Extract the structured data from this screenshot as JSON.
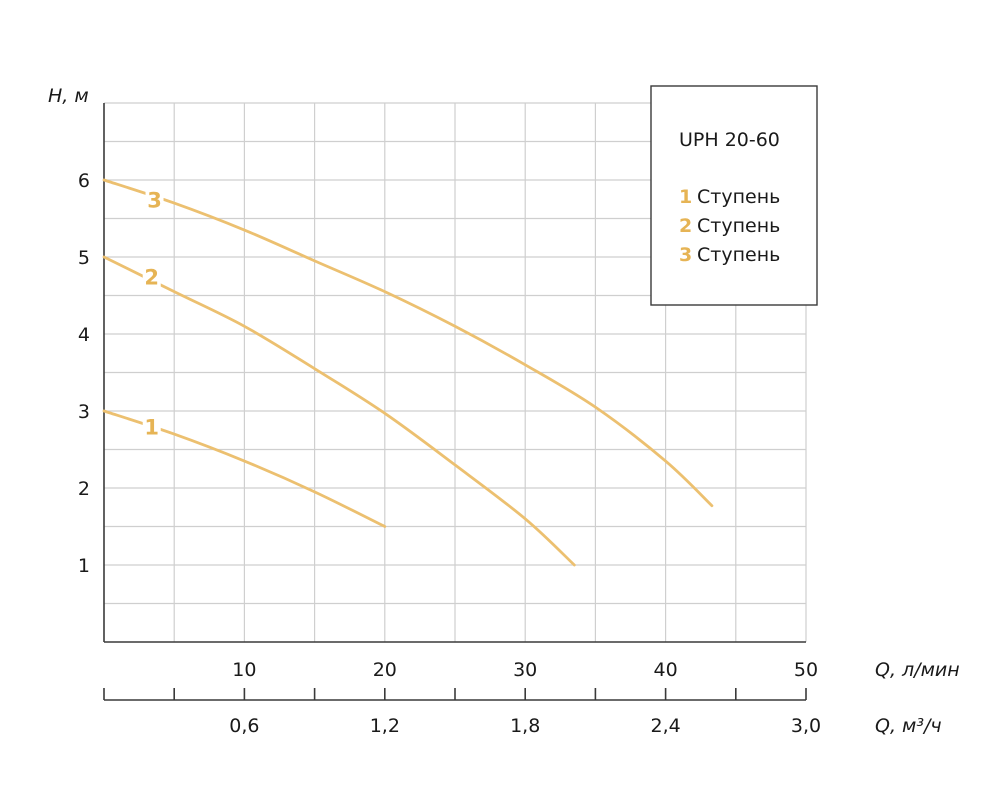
{
  "chart_data": {
    "type": "line",
    "ylabel": "H, м",
    "xlabel": "Q, л/мин",
    "xlabel_secondary": "Q, м³/ч",
    "xlim": [
      0,
      50
    ],
    "ylim": [
      0,
      7
    ],
    "grid": true,
    "x_ticks": [
      10,
      20,
      30,
      40,
      50
    ],
    "x_tick_labels": [
      "10",
      "20",
      "30",
      "40",
      "50"
    ],
    "x_secondary_ticks": [
      0.6,
      1.2,
      1.8,
      2.4,
      3.0
    ],
    "x_secondary_tick_labels": [
      "0,6",
      "1,2",
      "1,8",
      "2,4",
      "3,0"
    ],
    "y_ticks": [
      1,
      2,
      3,
      4,
      5,
      6
    ],
    "y_tick_labels": [
      "1",
      "2",
      "3",
      "4",
      "5",
      "6"
    ],
    "legend": {
      "position": "top-right",
      "title": "UPH 20-60",
      "entries": [
        {
          "num": "1",
          "label": "Ступень"
        },
        {
          "num": "2",
          "label": "Ступень"
        },
        {
          "num": "3",
          "label": "Ступень"
        }
      ]
    },
    "series": [
      {
        "name": "1",
        "color": "#ecc070",
        "x": [
          0,
          5,
          10,
          15,
          20
        ],
        "y": [
          3.0,
          2.7,
          2.35,
          1.95,
          1.5
        ],
        "label_at": [
          3.4,
          2.8
        ]
      },
      {
        "name": "2",
        "color": "#ecc070",
        "x": [
          0,
          5,
          10,
          15,
          20,
          25,
          30,
          33.5
        ],
        "y": [
          5.0,
          4.55,
          4.1,
          3.55,
          2.97,
          2.3,
          1.6,
          1.0
        ],
        "label_at": [
          3.4,
          4.75
        ]
      },
      {
        "name": "3",
        "color": "#ecc070",
        "x": [
          0,
          5,
          10,
          15,
          20,
          25,
          30,
          35,
          40,
          43.3
        ],
        "y": [
          6.0,
          5.7,
          5.35,
          4.95,
          4.55,
          4.1,
          3.6,
          3.05,
          2.35,
          1.77
        ],
        "label_at": [
          3.6,
          5.75
        ]
      }
    ]
  }
}
